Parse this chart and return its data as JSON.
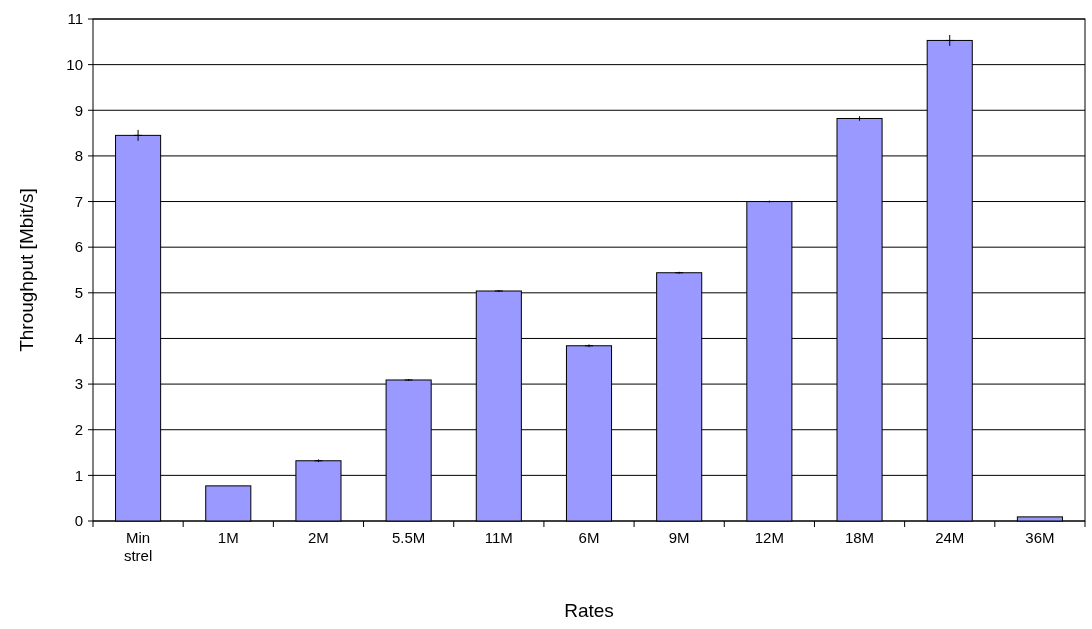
{
  "chart_data": {
    "type": "bar",
    "xlabel": "Rates",
    "ylabel": "Throughput [Mbit/s]",
    "categories": [
      "Min strel",
      "1M",
      "2M",
      "5.5M",
      "11M",
      "6M",
      "9M",
      "12M",
      "18M",
      "24M",
      "36M"
    ],
    "values": [
      8.45,
      0.77,
      1.32,
      3.09,
      5.04,
      3.84,
      5.44,
      7.0,
      8.82,
      10.53,
      0.09
    ],
    "errors": [
      0.12,
      null,
      0.03,
      0.02,
      0.02,
      0.03,
      0.02,
      0.02,
      0.05,
      0.12,
      null
    ],
    "color": "#9999ff",
    "ylim": [
      0,
      11
    ],
    "yticks": [
      0,
      1,
      2,
      3,
      4,
      5,
      6,
      7,
      8,
      9,
      10,
      11
    ],
    "grid": "y"
  }
}
